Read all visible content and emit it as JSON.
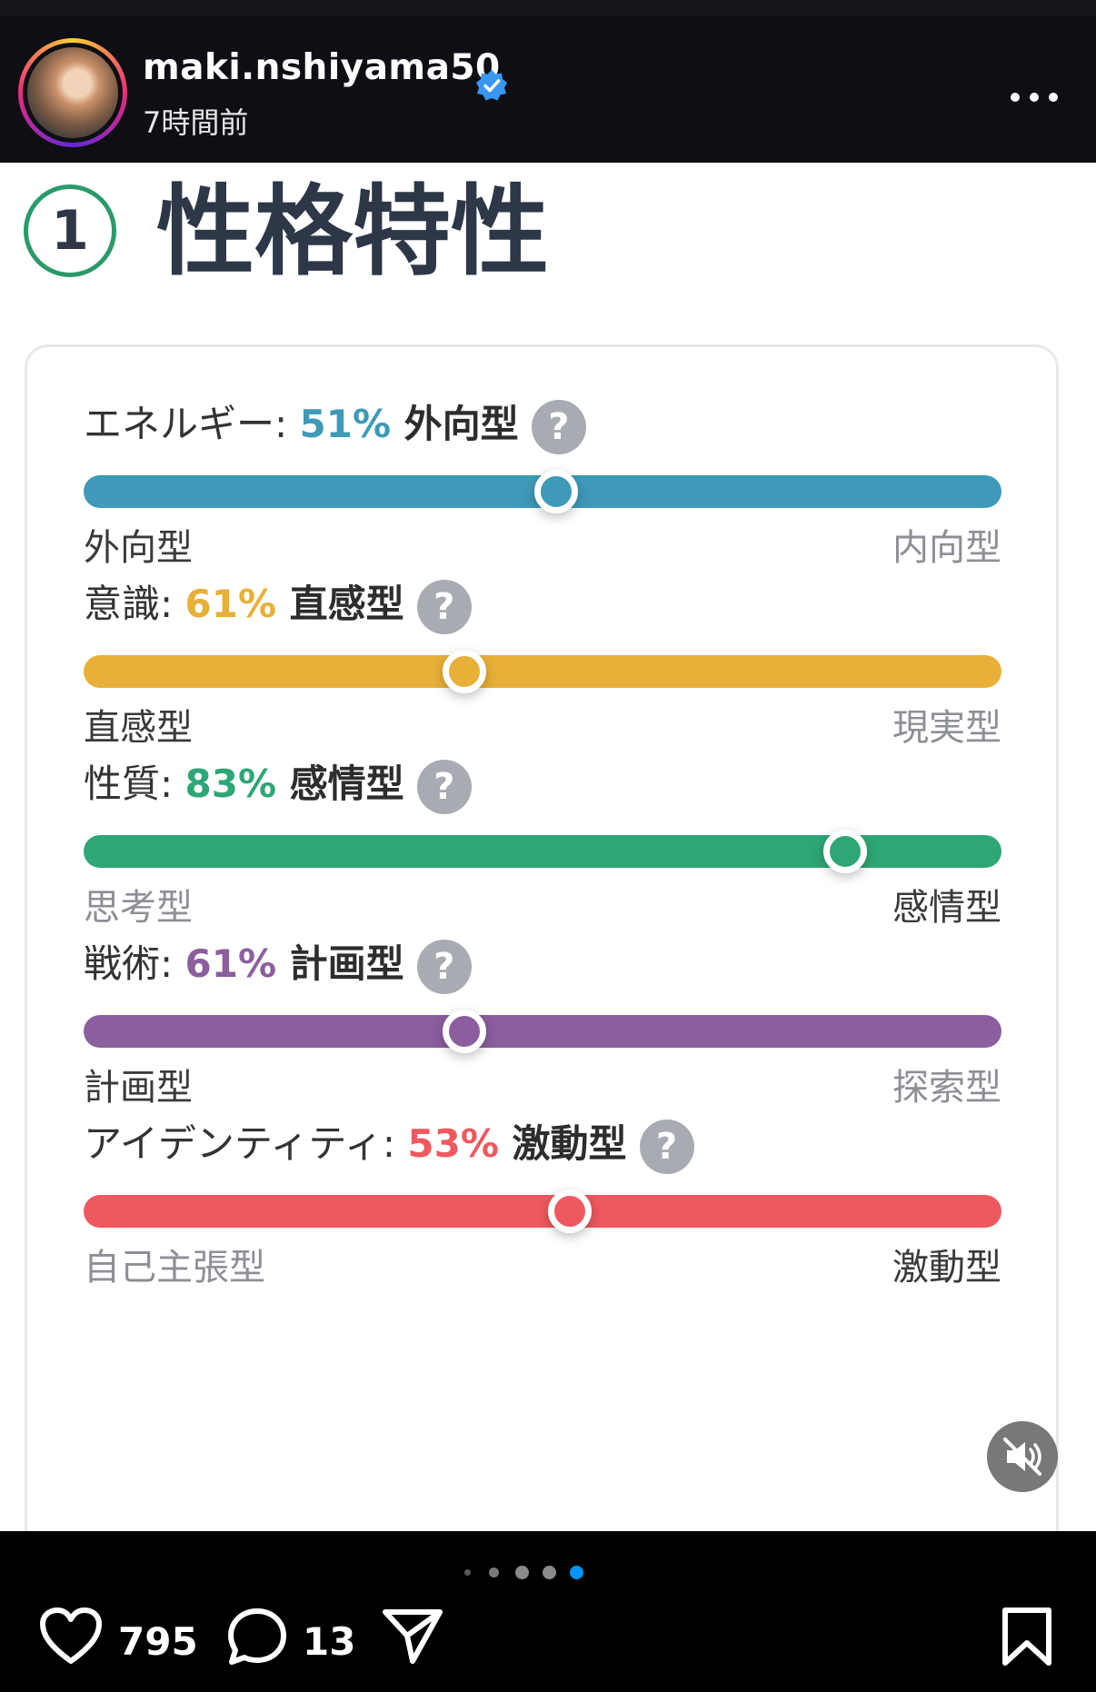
{
  "post": {
    "username": "maki.nshiyama50",
    "time_ago": "7時間前",
    "likes": "795",
    "comments": "13",
    "carousel": {
      "total": 5,
      "active": 5
    }
  },
  "content": {
    "section_number": "1",
    "section_title": "性格特性",
    "traits": [
      {
        "label": "エネルギー:",
        "percent": "51%",
        "type": "外向型",
        "value": 51,
        "position": 0.515,
        "left": "外向型",
        "right": "内向型",
        "active_side": "left",
        "color": "#3e9ab8"
      },
      {
        "label": "意識:",
        "percent": "61%",
        "type": "直感型",
        "value": 61,
        "position": 0.415,
        "left": "直感型",
        "right": "現実型",
        "active_side": "left",
        "color": "#e8b038"
      },
      {
        "label": "性質:",
        "percent": "83%",
        "type": "感情型",
        "value": 83,
        "position": 0.83,
        "left": "思考型",
        "right": "感情型",
        "active_side": "right",
        "color": "#2fa675"
      },
      {
        "label": "戦術:",
        "percent": "61%",
        "type": "計画型",
        "value": 61,
        "position": 0.415,
        "left": "計画型",
        "right": "探索型",
        "active_side": "left",
        "color": "#8b5e9e"
      },
      {
        "label": "アイデンティティ:",
        "percent": "53%",
        "type": "激動型",
        "value": 53,
        "position": 0.53,
        "left": "自己主張型",
        "right": "激動型",
        "active_side": "right",
        "color": "#f0585f"
      }
    ],
    "help_glyph": "?"
  },
  "icons": {
    "verified": "verified-badge-icon",
    "more": "more-options-icon",
    "mute": "muted-speaker-icon",
    "like": "heart-icon",
    "comment": "comment-bubble-icon",
    "share": "paper-plane-icon",
    "save": "bookmark-icon"
  },
  "colors": {
    "verified": "#3897f0",
    "active_dot": "#0095f6"
  }
}
